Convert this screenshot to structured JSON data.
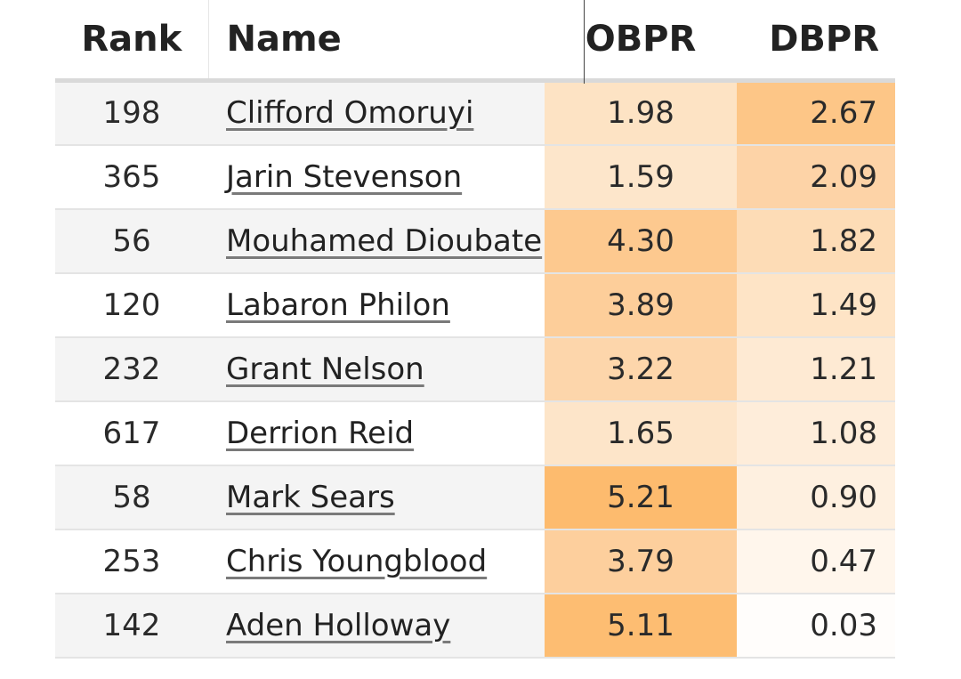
{
  "table": {
    "headers": {
      "rank": "Rank",
      "name": "Name",
      "obpr": "OBPR",
      "dbpr": "DBPR"
    },
    "rows": [
      {
        "rank": "198",
        "name": "Clifford Omoruyi",
        "obpr": "1.98",
        "dbpr": "2.67",
        "obpr_color": "#fde3c4",
        "dbpr_color": "#fdc687"
      },
      {
        "rank": "365",
        "name": "Jarin Stevenson",
        "obpr": "1.59",
        "dbpr": "2.09",
        "obpr_color": "#fde6cb",
        "dbpr_color": "#fdd3a7"
      },
      {
        "rank": "56",
        "name": "Mouhamed Dioubate",
        "obpr": "4.30",
        "dbpr": "1.82",
        "obpr_color": "#fdc98f",
        "dbpr_color": "#fddcb6"
      },
      {
        "rank": "120",
        "name": "Labaron Philon",
        "obpr": "3.89",
        "dbpr": "1.49",
        "obpr_color": "#fdce9a",
        "dbpr_color": "#fee4c6"
      },
      {
        "rank": "232",
        "name": "Grant Nelson",
        "obpr": "3.22",
        "dbpr": "1.21",
        "obpr_color": "#fdd6ab",
        "dbpr_color": "#feead3"
      },
      {
        "rank": "617",
        "name": "Derrion Reid",
        "obpr": "1.65",
        "dbpr": "1.08",
        "obpr_color": "#fde5c9",
        "dbpr_color": "#feedda"
      },
      {
        "rank": "58",
        "name": "Mark Sears",
        "obpr": "5.21",
        "dbpr": "0.90",
        "obpr_color": "#fdbb6e",
        "dbpr_color": "#fef0e0"
      },
      {
        "rank": "253",
        "name": "Chris Youngblood",
        "obpr": "3.79",
        "dbpr": "0.47",
        "obpr_color": "#fdcf9d",
        "dbpr_color": "#fff6ec"
      },
      {
        "rank": "142",
        "name": "Aden Holloway",
        "obpr": "5.11",
        "dbpr": "0.03",
        "obpr_color": "#fdbd72",
        "dbpr_color": "#fffdfb"
      }
    ]
  }
}
